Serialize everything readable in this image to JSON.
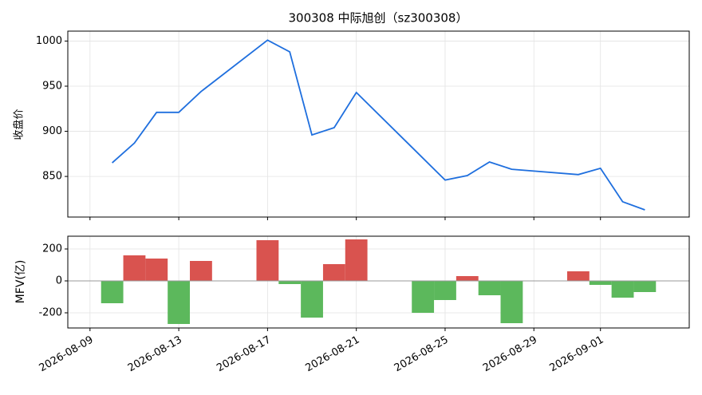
{
  "chart_data": [
    {
      "type": "line",
      "title": "300308 中际旭创（sz300308）",
      "ylabel": "收盘价",
      "x": [
        "2026-08-10",
        "2026-08-11",
        "2026-08-12",
        "2026-08-13",
        "2026-08-14",
        "2026-08-17",
        "2026-08-18",
        "2026-08-19",
        "2026-08-20",
        "2026-08-21",
        "2026-08-25",
        "2026-08-26",
        "2026-08-27",
        "2026-08-28",
        "2026-08-31",
        "2026-09-01",
        "2026-09-02",
        "2026-09-03"
      ],
      "values": [
        865,
        887,
        921,
        921,
        944,
        1001,
        988,
        896,
        904,
        943,
        846,
        851,
        866,
        858,
        852,
        859,
        822,
        813
      ],
      "color": "#1f6fde",
      "xlim": [
        "2026-08-08",
        "2026-09-05"
      ],
      "ylim": [
        805,
        1011
      ],
      "yticks": [
        850,
        900,
        950,
        1000
      ],
      "grid": true
    },
    {
      "type": "bar",
      "ylabel": "MFV(亿)",
      "x": [
        "2026-08-10",
        "2026-08-11",
        "2026-08-12",
        "2026-08-13",
        "2026-08-14",
        "2026-08-17",
        "2026-08-18",
        "2026-08-19",
        "2026-08-20",
        "2026-08-21",
        "2026-08-24",
        "2026-08-25",
        "2026-08-26",
        "2026-08-27",
        "2026-08-28",
        "2026-08-31",
        "2026-09-01",
        "2026-09-02",
        "2026-09-03"
      ],
      "values": [
        -140,
        160,
        140,
        -270,
        125,
        255,
        -20,
        -230,
        105,
        260,
        -200,
        -120,
        30,
        -90,
        -265,
        60,
        -25,
        -105,
        -70
      ],
      "positive_color": "#d9534f",
      "negative_color": "#5cb85c",
      "xlim": [
        "2026-08-08",
        "2026-09-05"
      ],
      "xticks": [
        "2026-08-09",
        "2026-08-13",
        "2026-08-17",
        "2026-08-21",
        "2026-08-25",
        "2026-08-29",
        "2026-09-01"
      ],
      "ylim": [
        -295,
        280
      ],
      "yticks": [
        -200,
        0,
        200
      ],
      "grid": true
    }
  ]
}
